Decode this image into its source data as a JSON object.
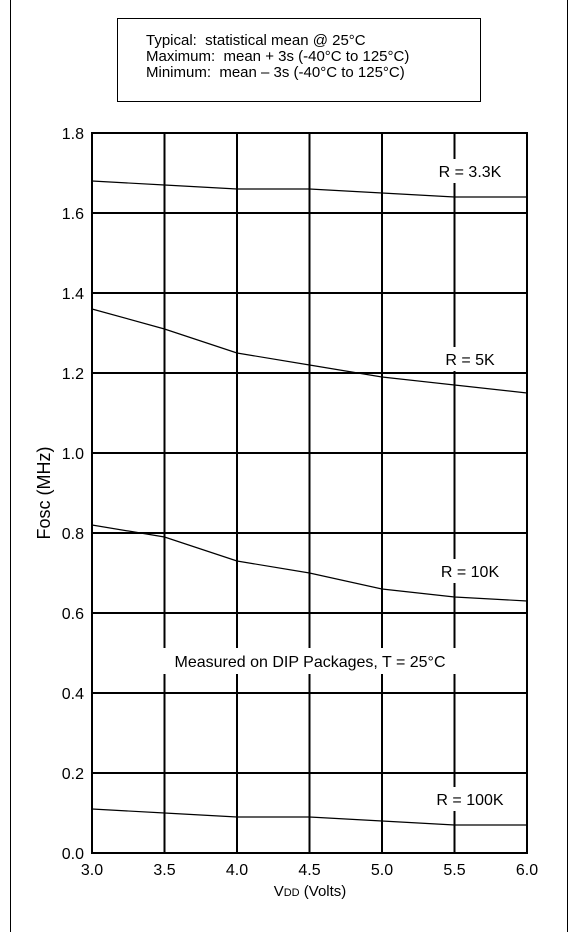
{
  "legend_box": {
    "lines": [
      "Typical:  statistical mean @ 25°C",
      "Maximum:  mean + 3s (-40°C to 125°C)",
      "Minimum:  mean – 3s (-40°C to 125°C)"
    ]
  },
  "chart_data": {
    "type": "line",
    "xlabel": "VDD (Volts)",
    "ylabel": "Fosc (MHz)",
    "xlim": [
      3.0,
      6.0
    ],
    "ylim": [
      0.0,
      1.8
    ],
    "x_ticks": [
      "3.0",
      "3.5",
      "4.0",
      "4.5",
      "5.0",
      "5.5",
      "6.0"
    ],
    "y_ticks": [
      "0.0",
      "0.2",
      "0.4",
      "0.6",
      "0.8",
      "1.0",
      "1.2",
      "1.4",
      "1.6",
      "1.8"
    ],
    "grid": true,
    "annotation": "Measured on DIP Packages, T = 25°C",
    "x": [
      3.0,
      3.5,
      4.0,
      4.5,
      5.0,
      5.5,
      6.0
    ],
    "series": [
      {
        "name": "R = 3.3K",
        "values": [
          1.68,
          1.67,
          1.66,
          1.66,
          1.65,
          1.64,
          1.64
        ]
      },
      {
        "name": "R = 5K",
        "values": [
          1.36,
          1.31,
          1.25,
          1.22,
          1.19,
          1.17,
          1.15
        ]
      },
      {
        "name": "R = 10K",
        "values": [
          0.82,
          0.79,
          0.73,
          0.7,
          0.66,
          0.64,
          0.63
        ]
      },
      {
        "name": "R = 100K",
        "values": [
          0.11,
          0.1,
          0.09,
          0.09,
          0.08,
          0.07,
          0.07
        ]
      }
    ]
  }
}
